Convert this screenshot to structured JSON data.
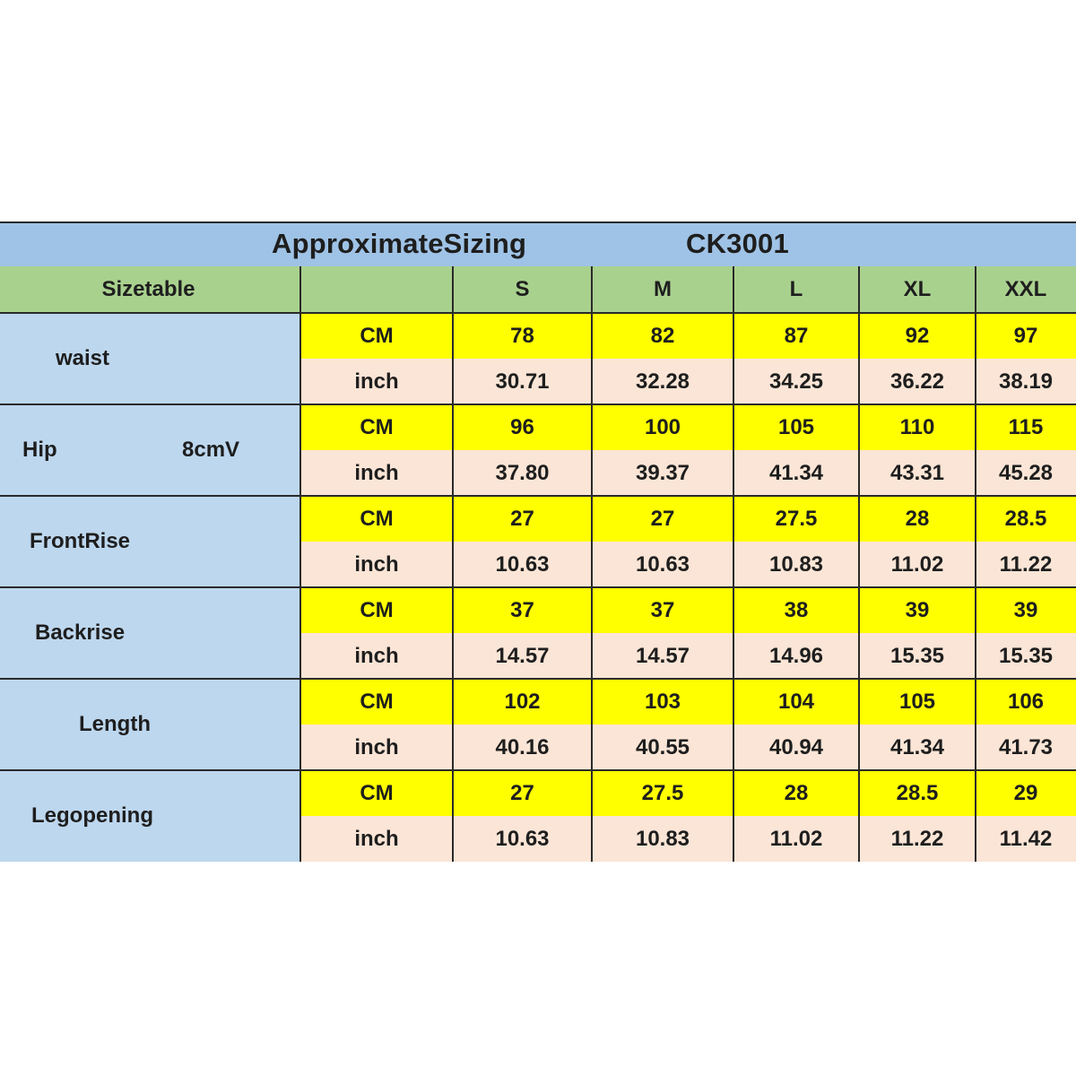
{
  "title": {
    "left": "ApproximateSizing",
    "right": "CK3001"
  },
  "header": {
    "corner": "Sizetable",
    "unit_col": "",
    "sizes": [
      "S",
      "M",
      "L",
      "XL",
      "XXL"
    ]
  },
  "rows": [
    {
      "label": "waist",
      "note": "",
      "cm_unit": "CM",
      "inch_unit": "inch",
      "cm": [
        "78",
        "82",
        "87",
        "92",
        "97"
      ],
      "inch": [
        "30.71",
        "32.28",
        "34.25",
        "36.22",
        "38.19"
      ]
    },
    {
      "label": "Hip",
      "note": "8cmV",
      "cm_unit": "CM",
      "inch_unit": "inch",
      "cm": [
        "96",
        "100",
        "105",
        "110",
        "115"
      ],
      "inch": [
        "37.80",
        "39.37",
        "41.34",
        "43.31",
        "45.28"
      ]
    },
    {
      "label": "FrontRise",
      "note": "",
      "cm_unit": "CM",
      "inch_unit": "inch",
      "cm": [
        "27",
        "27",
        "27.5",
        "28",
        "28.5"
      ],
      "inch": [
        "10.63",
        "10.63",
        "10.83",
        "11.02",
        "11.22"
      ]
    },
    {
      "label": "Backrise",
      "note": "",
      "cm_unit": "CM",
      "inch_unit": "inch",
      "cm": [
        "37",
        "37",
        "38",
        "39",
        "39"
      ],
      "inch": [
        "14.57",
        "14.57",
        "14.96",
        "15.35",
        "15.35"
      ]
    },
    {
      "label": "Length",
      "note": "",
      "cm_unit": "CM",
      "inch_unit": "inch",
      "cm": [
        "102",
        "103",
        "104",
        "105",
        "106"
      ],
      "inch": [
        "40.16",
        "40.55",
        "40.94",
        "41.34",
        "41.73"
      ]
    },
    {
      "label": "Legopening",
      "note": "",
      "cm_unit": "CM",
      "inch_unit": "inch",
      "cm": [
        "27",
        "27.5",
        "28",
        "28.5",
        "29"
      ],
      "inch": [
        "10.63",
        "10.83",
        "11.02",
        "11.22",
        "11.42"
      ]
    }
  ],
  "colors": {
    "title_bg": "#9fc3e6",
    "header_bg": "#a9d18e",
    "label_bg": "#bdd7ee",
    "cm_row_bg": "#ffff00",
    "inch_row_bg": "#fbe5d6",
    "grid_line": "#2a2a2a"
  }
}
